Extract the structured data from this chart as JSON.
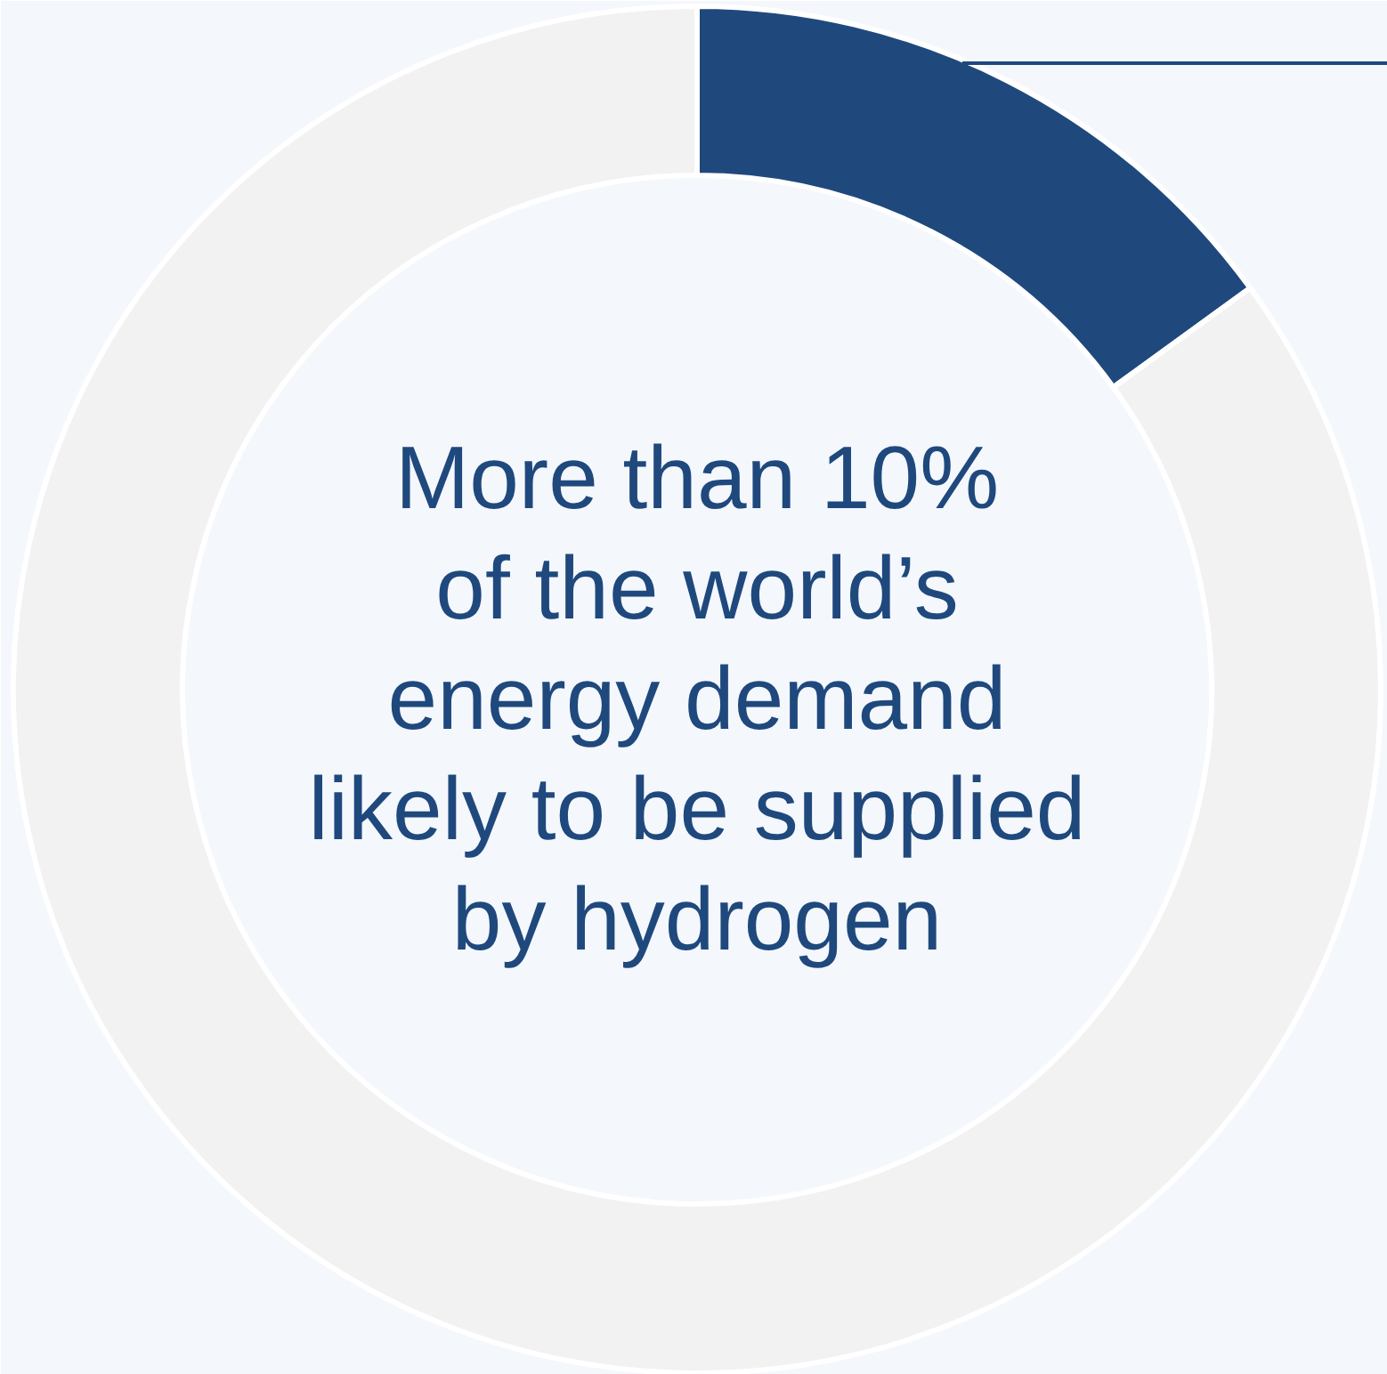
{
  "chart_data": {
    "type": "donut",
    "categories": [
      null,
      null
    ],
    "values": [
      15,
      85
    ],
    "colors": [
      "#1f497d",
      "#f2f2f2"
    ],
    "annotations": [
      "More than 10%\nof the world’s\nenergy demand\nlikely to be supplied\nby hydrogen"
    ]
  }
}
